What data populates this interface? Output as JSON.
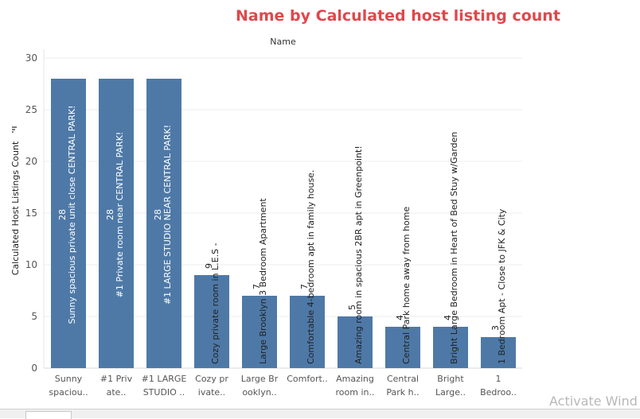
{
  "title": "Name by Calculated host listing count",
  "header": "Name",
  "watermark": "Activate Wind",
  "chart_data": {
    "type": "bar",
    "title": "Name by Calculated host listing count",
    "xlabel": "Name",
    "ylabel": "Calculated Host Listings Count",
    "ylim": [
      0,
      30
    ],
    "yticks": [
      0,
      5,
      10,
      15,
      20,
      25,
      30
    ],
    "grid": true,
    "bar_color": "#4e79a7",
    "categories": [
      "Sunny spacious private unit close CENTRAL PARK!",
      "#1 Private room near CENTRAL PARK!",
      "#1 LARGE STUDIO NEAR CENTRAL PARK!",
      "Cozy private room in L.E.S -",
      "Large Brooklyn 3 Bedroom Apartment",
      "Comfortable 4-bedroom apt in family house.",
      "Amazing room in spacious 2BR apt in Greenpoint!",
      "Central Park home away from home",
      "Bright Large Bedroom in Heart of Bed Stuy w/Garden",
      "1 Bedroom Apt - Close to JFK & City"
    ],
    "tick_labels": [
      [
        "Sunny",
        "spaciou.."
      ],
      [
        "#1 Priv",
        "ate.."
      ],
      [
        "#1 LARGE",
        "STUDIO .."
      ],
      [
        "Cozy pr",
        "ivate.."
      ],
      [
        "Large Br",
        "ooklyn.."
      ],
      [
        "Comfort.."
      ],
      [
        "Amazing",
        "room in.."
      ],
      [
        "Central",
        "Park h.."
      ],
      [
        "Bright",
        "Large.."
      ],
      [
        "1",
        "Bedroo.."
      ]
    ],
    "values": [
      28,
      28,
      28,
      9,
      7,
      7,
      5,
      4,
      4,
      3
    ]
  }
}
